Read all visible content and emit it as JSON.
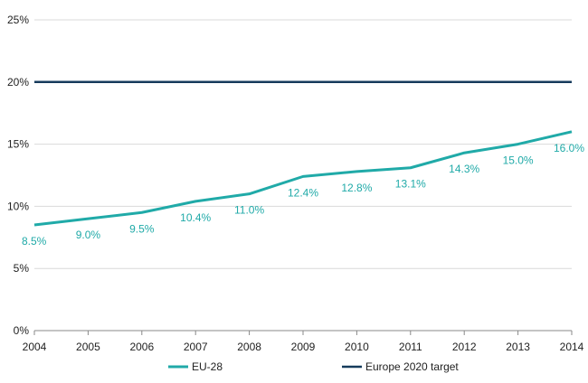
{
  "chart_data": {
    "type": "line",
    "title": "",
    "xlabel": "",
    "ylabel": "",
    "categories": [
      "2004",
      "2005",
      "2006",
      "2007",
      "2008",
      "2009",
      "2010",
      "2011",
      "2012",
      "2013",
      "2014"
    ],
    "ylim": [
      0,
      25
    ],
    "yticks": [
      0,
      5,
      10,
      15,
      20,
      25
    ],
    "ytick_labels": [
      "0%",
      "5%",
      "10%",
      "15%",
      "20%",
      "25%"
    ],
    "grid": true,
    "legend_position": "bottom",
    "series": [
      {
        "name": "EU-28",
        "color": "#20aaa8",
        "values": [
          8.5,
          9.0,
          9.5,
          10.4,
          11.0,
          12.4,
          12.8,
          13.1,
          14.3,
          15.0,
          16.0
        ],
        "data_labels": [
          "8.5%",
          "9.0%",
          "9.5%",
          "10.4%",
          "11.0%",
          "12.4%",
          "12.8%",
          "13.1%",
          "14.3%",
          "15.0%",
          "16.0%"
        ]
      },
      {
        "name": "Europe 2020 target",
        "color": "#163b5c",
        "values": [
          20,
          20,
          20,
          20,
          20,
          20,
          20,
          20,
          20,
          20,
          20
        ]
      }
    ]
  }
}
